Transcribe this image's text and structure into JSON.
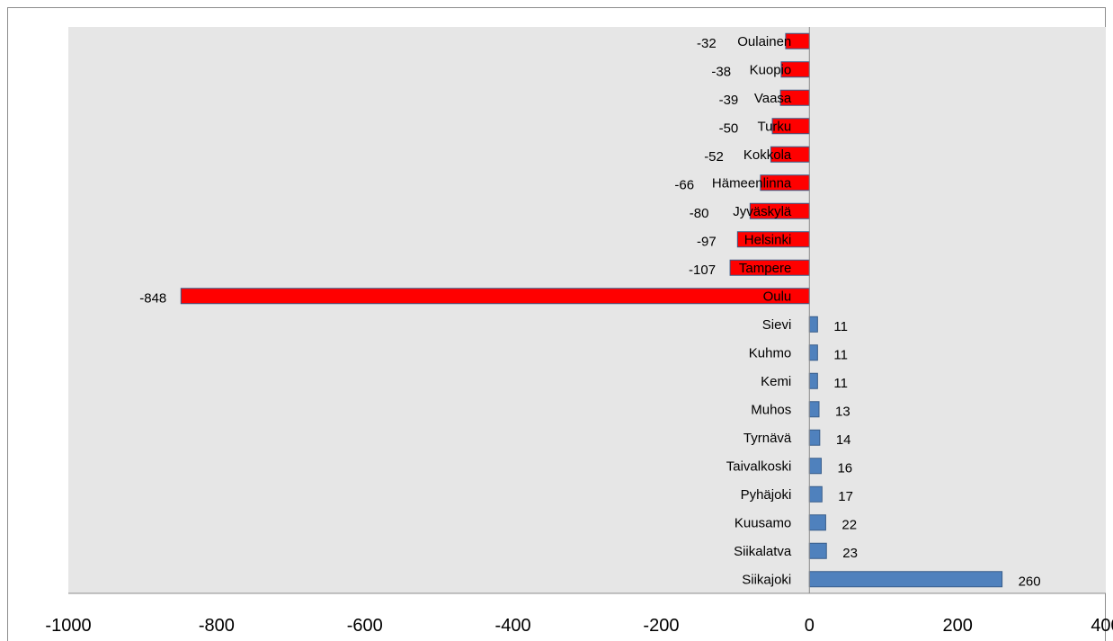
{
  "chart_data": {
    "type": "bar",
    "orientation": "horizontal",
    "categories": [
      "Oulainen",
      "Kuopio",
      "Vaasa",
      "Turku",
      "Kokkola",
      "Hämeenlinna",
      "Jyväskylä",
      "Helsinki",
      "Tampere",
      "Oulu",
      "Sievi",
      "Kuhmo",
      "Kemi",
      "Muhos",
      "Tyrnävä",
      "Taivalkoski",
      "Pyhäjoki",
      "Kuusamo",
      "Siikalatva",
      "Siikajoki"
    ],
    "values": [
      -32,
      -38,
      -39,
      -50,
      -52,
      -66,
      -80,
      -97,
      -107,
      -848,
      11,
      11,
      11,
      13,
      14,
      16,
      17,
      22,
      23,
      260
    ],
    "value_labels": [
      "-32",
      "-38",
      "-39",
      "-50",
      "-52",
      "-66",
      "-80",
      "-97",
      "-107",
      "-848",
      "11",
      "11",
      "11",
      "13",
      "14",
      "16",
      "17",
      "22",
      "23",
      "260"
    ],
    "xlim": [
      -1000,
      400
    ],
    "x_ticks": [
      -1000,
      -800,
      -600,
      -400,
      -200,
      0,
      200,
      400
    ],
    "x_tick_labels": [
      "-1000",
      "-800",
      "-600",
      "-400",
      "-200",
      "0",
      "200",
      "400"
    ],
    "title": "",
    "xlabel": "",
    "ylabel": "",
    "grid": false,
    "colors": {
      "negative": "#ff0000",
      "positive": "#4f81bd",
      "bar_border": "#385d8a",
      "plot_background": "#e6e6e6",
      "axis": "#8c8c8c"
    }
  }
}
